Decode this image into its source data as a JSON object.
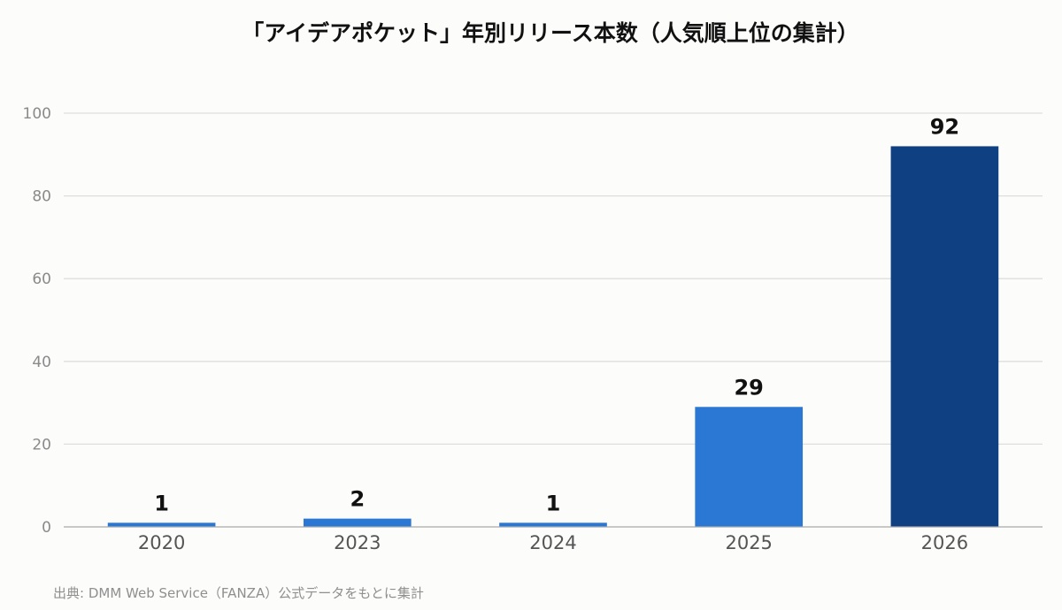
{
  "chart_data": {
    "type": "bar",
    "title": "「アイデアポケット」年別リリース本数（人気順上位の集計）",
    "source": "出典: DMM Web Service（FANZA）公式データをもとに集計",
    "categories": [
      "2020",
      "2023",
      "2024",
      "2025",
      "2026"
    ],
    "values": [
      1,
      2,
      1,
      29,
      92
    ],
    "data_labels": [
      "1",
      "2",
      "1",
      "29",
      "92"
    ],
    "xlabel": "",
    "ylabel": "",
    "ylim": [
      0,
      100
    ],
    "yticks": [
      0,
      20,
      40,
      60,
      80,
      100
    ],
    "grid": true,
    "legend": "none",
    "colors": {
      "bar": "#2b78d4",
      "highlight_bar": "#0f4082",
      "highlight_index": 4
    }
  }
}
